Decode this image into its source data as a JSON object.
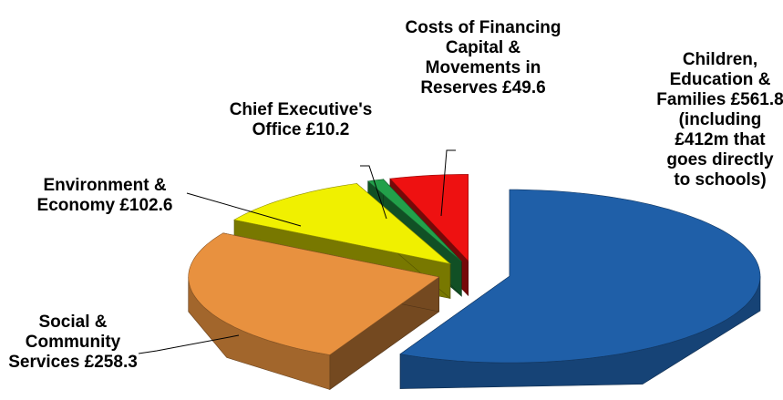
{
  "chart_data": {
    "type": "pie3d",
    "categories": [
      "Children, Education & Families",
      "Social & Community Services",
      "Environment & Economy",
      "Chief Executive's Office",
      "Costs of Financing Capital & Movements in Reserves"
    ],
    "values": [
      561.8,
      258.3,
      102.6,
      10.2,
      49.6
    ],
    "value_labels": [
      "£561.8",
      "£258.3",
      "£102.6",
      "£10.2",
      "£49.6"
    ],
    "annotations": [
      "(including £412m that goes directly to schools)"
    ],
    "colors": [
      "#1f5fa8",
      "#e8913f",
      "#f0f000",
      "#22a04a",
      "#ee1111"
    ]
  }
}
